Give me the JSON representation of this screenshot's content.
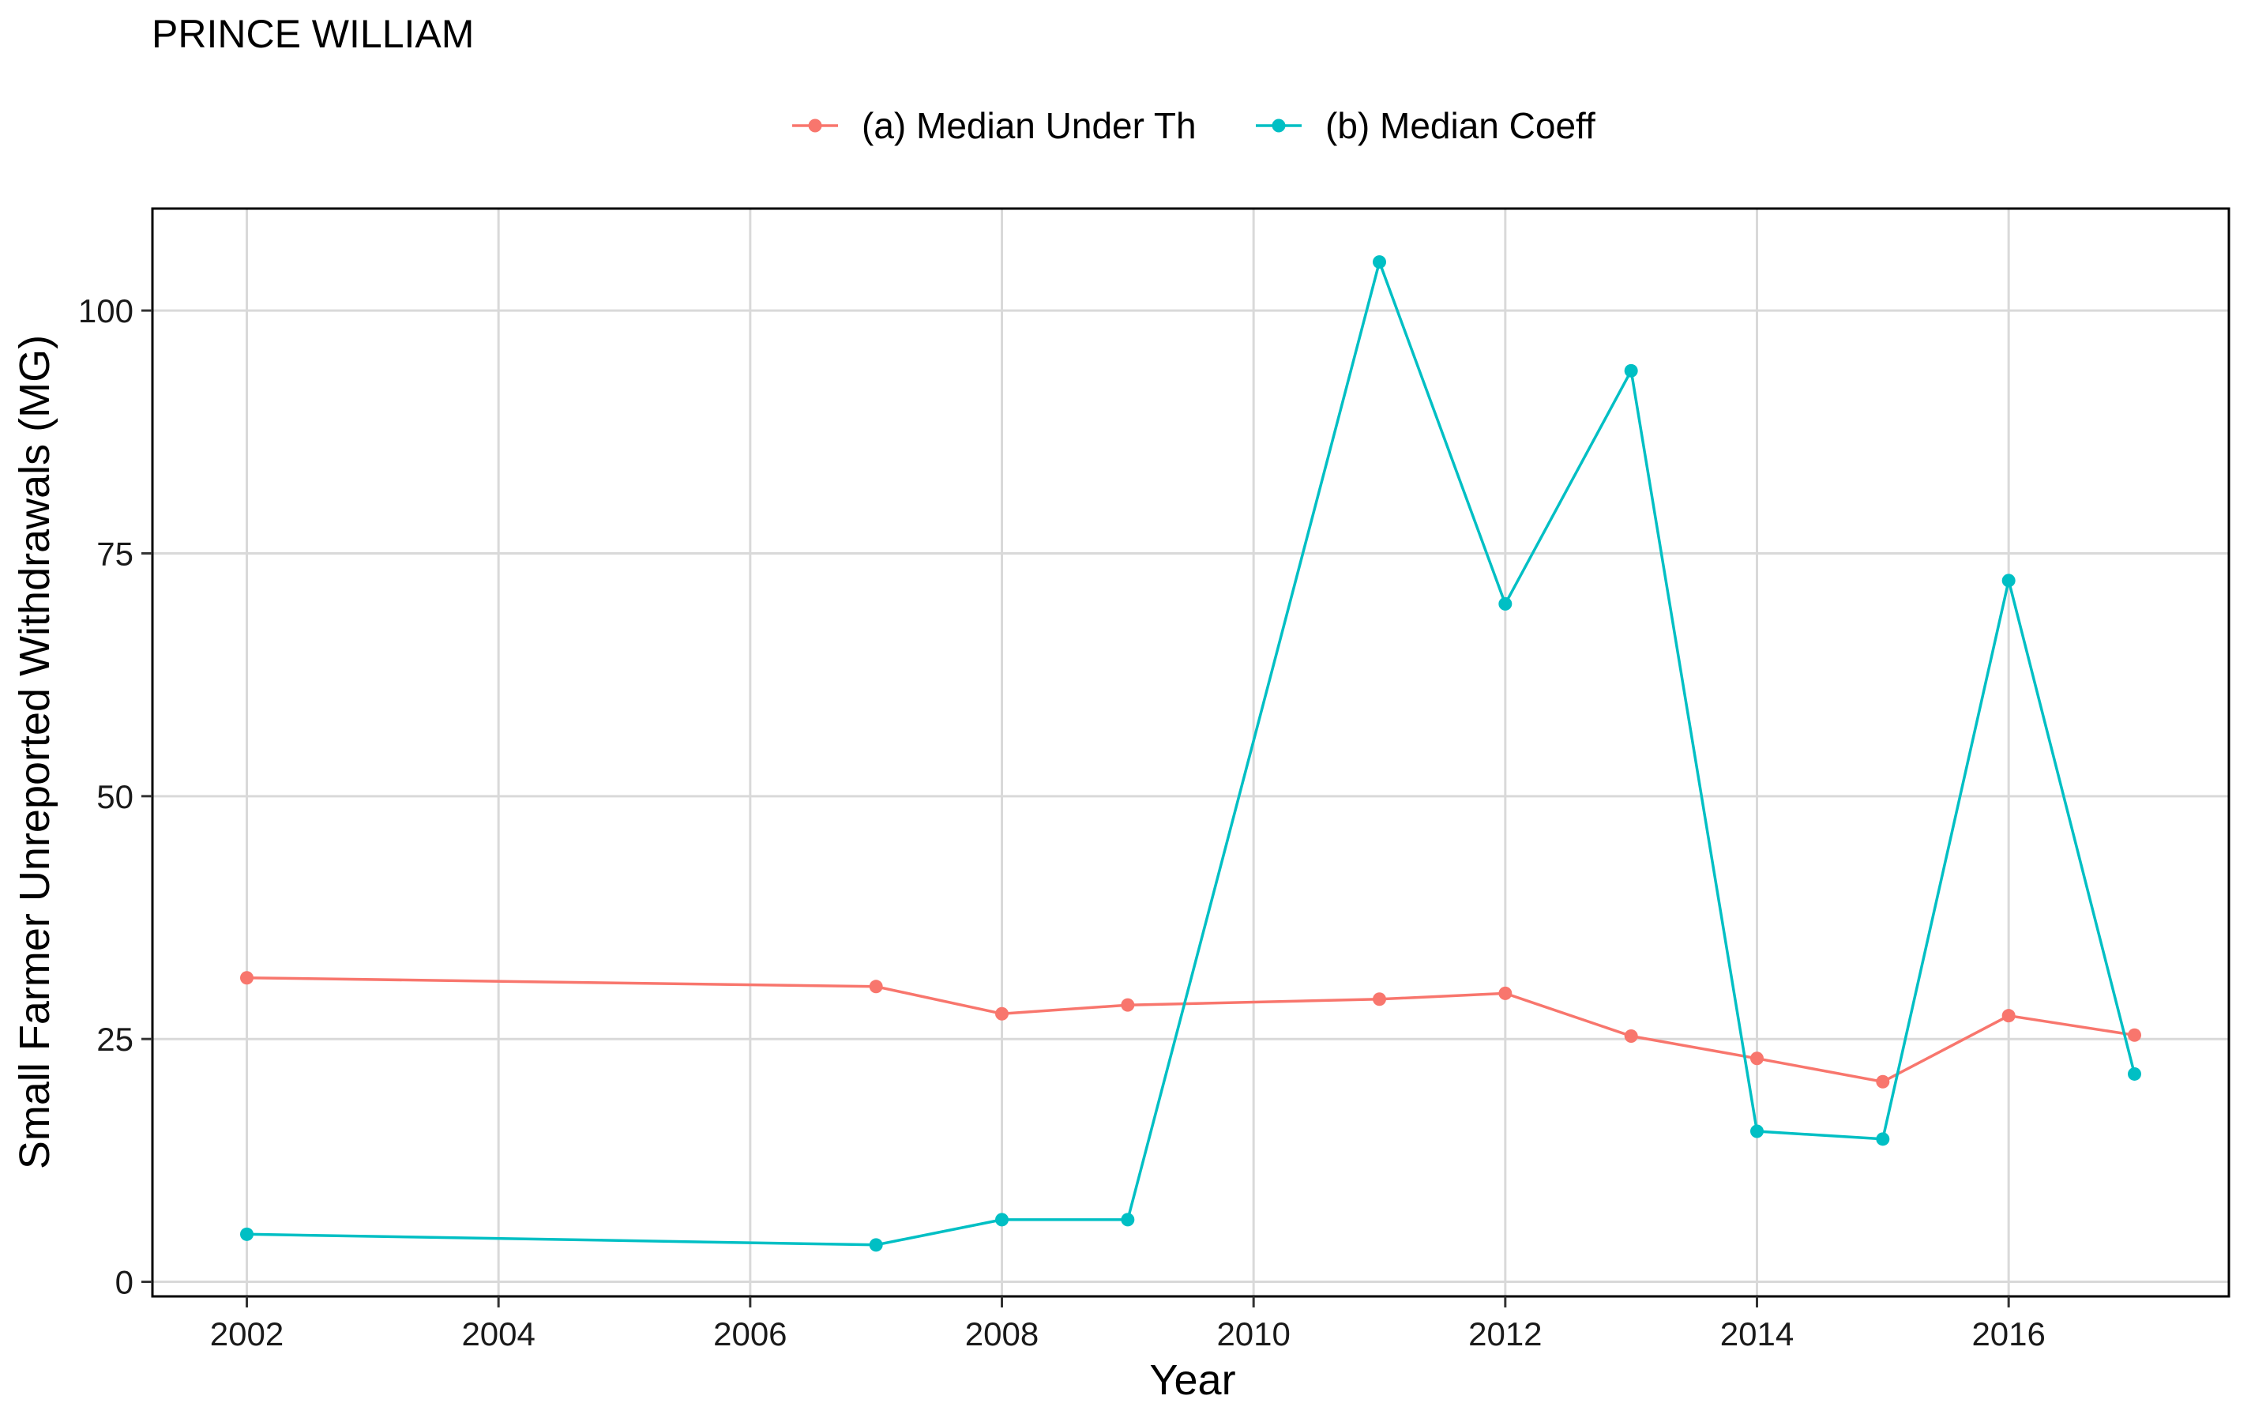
{
  "chart_data": {
    "type": "line",
    "title": "PRINCE WILLIAM",
    "xlabel": "Year",
    "ylabel": "Small Farmer Unreported Withdrawals (MG)",
    "xlim": [
      2001.25,
      2017.75
    ],
    "ylim": [
      -1.5,
      110.5
    ],
    "xticks": [
      2002,
      2004,
      2006,
      2008,
      2010,
      2012,
      2014,
      2016
    ],
    "yticks": [
      0,
      25,
      50,
      75,
      100
    ],
    "grid": true,
    "legend_position": "top",
    "series": [
      {
        "name": "(a) Median Under Th",
        "color": "#F8766D",
        "x": [
          2002,
          2007,
          2008,
          2009,
          2011,
          2012,
          2013,
          2014,
          2015,
          2016,
          2017
        ],
        "y": [
          31.3,
          30.4,
          27.6,
          28.5,
          29.1,
          29.7,
          25.3,
          23.0,
          20.6,
          27.4,
          25.4
        ]
      },
      {
        "name": "(b) Median Coeff",
        "color": "#00BFC4",
        "x": [
          2002,
          2007,
          2008,
          2009,
          2011,
          2012,
          2013,
          2014,
          2015,
          2016,
          2017
        ],
        "y": [
          4.9,
          3.8,
          6.4,
          6.4,
          105.0,
          69.8,
          93.8,
          15.5,
          14.7,
          72.2,
          21.4
        ]
      }
    ]
  }
}
